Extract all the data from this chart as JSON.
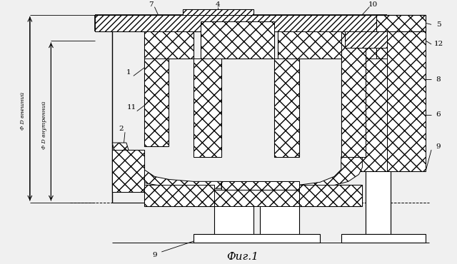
{
  "background_color": "#f0f0f0",
  "line_color": "#000000",
  "fig_label": "Фиг.1",
  "dim_outer": "Φ D внешний",
  "dim_inner": "Φ D внутренний"
}
